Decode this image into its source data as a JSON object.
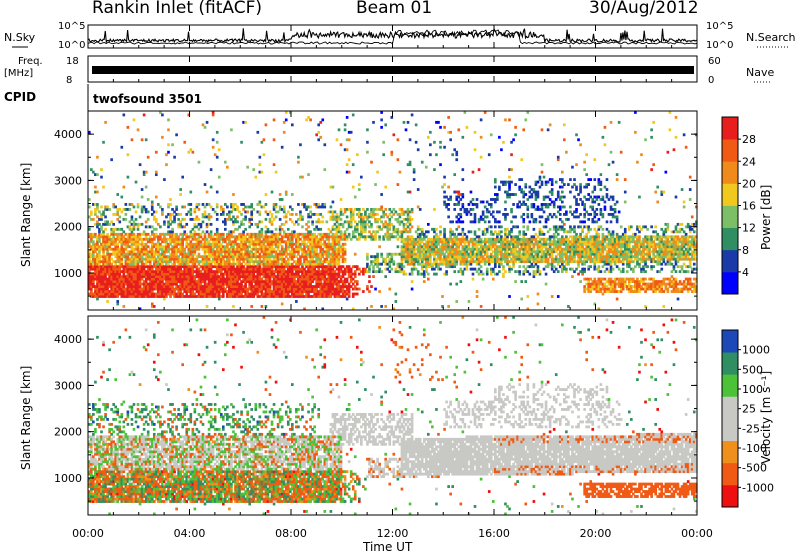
{
  "header": {
    "station": "Rankin Inlet (fitACF)",
    "beam": "Beam 01",
    "date": "30/Aug/2012"
  },
  "panels": {
    "nsky": {
      "label_top": "N.Sky",
      "tick_top": "10^5",
      "tick_bottom": "10^0",
      "right_label": "N.Search"
    },
    "freq": {
      "label_top": "Freq.",
      "label_unit": "[MHz]",
      "tick_top": "18",
      "tick_bottom": "8",
      "right_top": "60",
      "right_bottom": "0",
      "right_label": "Nave"
    },
    "cpid": {
      "label": "CPID",
      "program": "twofsound 3501"
    }
  },
  "colors": {
    "power": [
      "#0000ff",
      "#1a3aa8",
      "#2f8f62",
      "#7dbf66",
      "#f0c81e",
      "#f08a1a",
      "#f05a14",
      "#e81e1e"
    ],
    "velocity": [
      "#ee1010",
      "#f05a14",
      "#f0901c",
      "#c8c8c4",
      "#c8c8c4",
      "#4cc238",
      "#2f8f62",
      "#1c48b8"
    ]
  },
  "chart_data": [
    {
      "type": "heatmap",
      "name": "power",
      "ylabel": "Slant Range [km]",
      "yticks": [
        "1000",
        "2000",
        "3000",
        "4000"
      ],
      "ylim": [
        200,
        4500
      ],
      "colorbar_label": "Power [dB]",
      "colorbar_ticks": [
        "4",
        "8",
        "12",
        "16",
        "20",
        "24",
        "28"
      ],
      "colorbar_range": [
        0,
        32
      ]
    },
    {
      "type": "heatmap",
      "name": "velocity",
      "ylabel": "Slant Range [km]",
      "yticks": [
        "1000",
        "2000",
        "3000",
        "4000"
      ],
      "ylim": [
        200,
        4500
      ],
      "colorbar_label": "Velocity [m s⁻¹]",
      "colorbar_ticks": [
        "-1000",
        "-500",
        "-100",
        "-25",
        "25",
        "100",
        "500",
        "1000"
      ]
    }
  ],
  "xaxis": {
    "label": "Time UT",
    "ticks": [
      "00:00",
      "04:00",
      "08:00",
      "12:00",
      "16:00",
      "20:00",
      "00:00"
    ],
    "range_hours": [
      0,
      24
    ]
  }
}
